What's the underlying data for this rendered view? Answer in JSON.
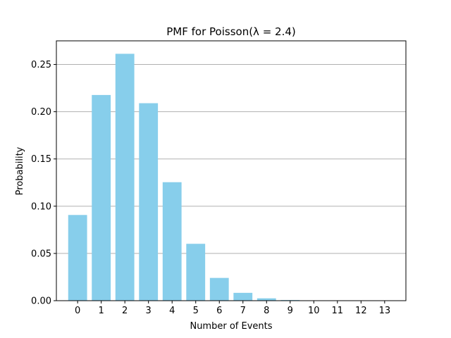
{
  "chart_data": {
    "type": "bar",
    "title": "PMF for Poisson(λ = 2.4)",
    "xlabel": "Number of Events",
    "ylabel": "Probability",
    "categories": [
      "0",
      "1",
      "2",
      "3",
      "4",
      "5",
      "6",
      "7",
      "8",
      "9",
      "10",
      "11",
      "12",
      "13"
    ],
    "values": [
      0.0907,
      0.2177,
      0.2613,
      0.209,
      0.1254,
      0.0602,
      0.0241,
      0.0083,
      0.0025,
      0.0007,
      0.0002,
      3e-05,
      1e-05,
      1e-06
    ],
    "ylim": [
      0,
      0.275
    ],
    "yticks": [
      0.0,
      0.05,
      0.1,
      0.15,
      0.2,
      0.25
    ],
    "ytick_labels": [
      "0.00",
      "0.05",
      "0.10",
      "0.15",
      "0.20",
      "0.25"
    ],
    "grid": "y-axis only",
    "bar_color": "#87ceeb",
    "grid_color": "#b0b0b0"
  }
}
